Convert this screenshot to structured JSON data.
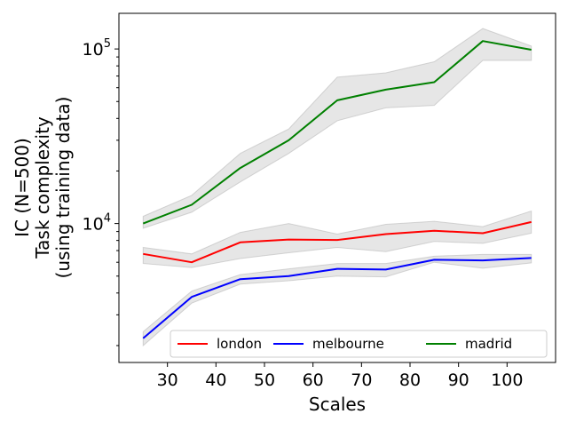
{
  "chart_data": {
    "type": "line",
    "xlabel": "Scales",
    "ylabel": [
      "IC (N=500)",
      "Task complexity",
      "(using training data)"
    ],
    "xlim": [
      20,
      110
    ],
    "ylim": [
      1600,
      160000
    ],
    "yscale": "log",
    "x_ticks": [
      30,
      40,
      50,
      60,
      70,
      80,
      90,
      100
    ],
    "y_ticks": [
      {
        "value": 10000,
        "base": "10",
        "exp": "4"
      },
      {
        "value": 100000,
        "base": "10",
        "exp": "5"
      }
    ],
    "grid": false,
    "legend_position": "lower-center",
    "x": [
      25,
      35,
      45,
      55,
      65,
      75,
      85,
      95,
      105
    ],
    "series": [
      {
        "name": "london",
        "color": "#ff0000",
        "values": [
          6700,
          6000,
          7800,
          8100,
          8050,
          8700,
          9100,
          8800,
          10200
        ],
        "lower": [
          5900,
          5600,
          6300,
          6800,
          7300,
          6900,
          7900,
          7700,
          8800
        ],
        "upper": [
          7300,
          6700,
          8900,
          10000,
          8700,
          9900,
          10300,
          9600,
          11800
        ]
      },
      {
        "name": "melbourne",
        "color": "#0000ff",
        "values": [
          2200,
          3800,
          4800,
          5000,
          5500,
          5450,
          6200,
          6150,
          6350
        ],
        "lower": [
          2000,
          3500,
          4500,
          4700,
          5000,
          4950,
          6000,
          5550,
          5950
        ],
        "upper": [
          2400,
          4100,
          5100,
          5500,
          5900,
          5900,
          6500,
          6650,
          6650
        ]
      },
      {
        "name": "madrid",
        "color": "#008000",
        "values": [
          10000,
          12800,
          20800,
          30000,
          50800,
          58500,
          64500,
          111000,
          99000
        ],
        "lower": [
          9400,
          11600,
          17300,
          25200,
          38800,
          46000,
          47500,
          86000,
          86000
        ],
        "upper": [
          11000,
          14500,
          25200,
          34800,
          69000,
          73000,
          84500,
          131000,
          104000
        ]
      }
    ]
  }
}
